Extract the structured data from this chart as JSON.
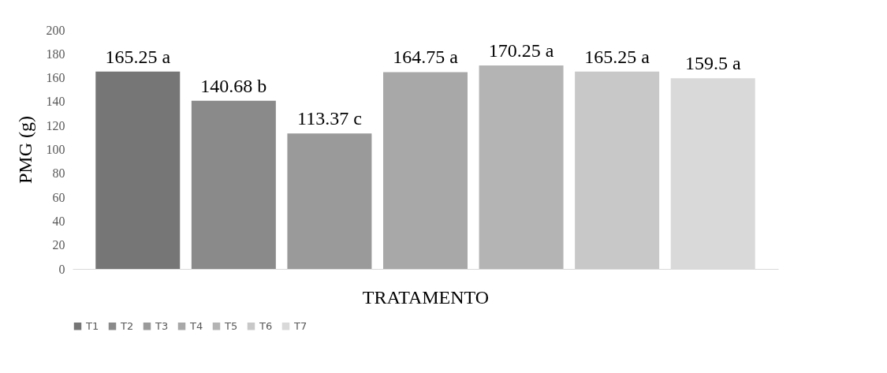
{
  "chart_data": {
    "type": "bar",
    "xlabel": "TRATAMENTO",
    "ylabel": "PMG (g)",
    "categories": [
      null
    ],
    "series": [
      {
        "name": "T1",
        "color": "#767676",
        "values": [
          165.25
        ],
        "value_labels": [
          "165.25 a"
        ]
      },
      {
        "name": "T2",
        "color": "#8a8a8a",
        "values": [
          140.68
        ],
        "value_labels": [
          "140.68 b"
        ]
      },
      {
        "name": "T3",
        "color": "#9a9a9a",
        "values": [
          113.37
        ],
        "value_labels": [
          "113.37 c"
        ]
      },
      {
        "name": "T4",
        "color": "#a8a8a8",
        "values": [
          164.75
        ],
        "value_labels": [
          "164.75 a"
        ]
      },
      {
        "name": "T5",
        "color": "#b4b4b4",
        "values": [
          170.25
        ],
        "value_labels": [
          "170.25 a"
        ]
      },
      {
        "name": "T6",
        "color": "#c8c8c8",
        "values": [
          165.25
        ],
        "value_labels": [
          "165.25 a"
        ]
      },
      {
        "name": "T7",
        "color": "#d9d9d9",
        "values": [
          159.5
        ],
        "value_labels": [
          "159.5 a"
        ]
      }
    ],
    "ylim": [
      0,
      200
    ],
    "yticks": [
      0,
      20,
      40,
      60,
      80,
      100,
      120,
      140,
      160,
      180,
      200
    ],
    "grid": false,
    "legend": "bottom"
  }
}
